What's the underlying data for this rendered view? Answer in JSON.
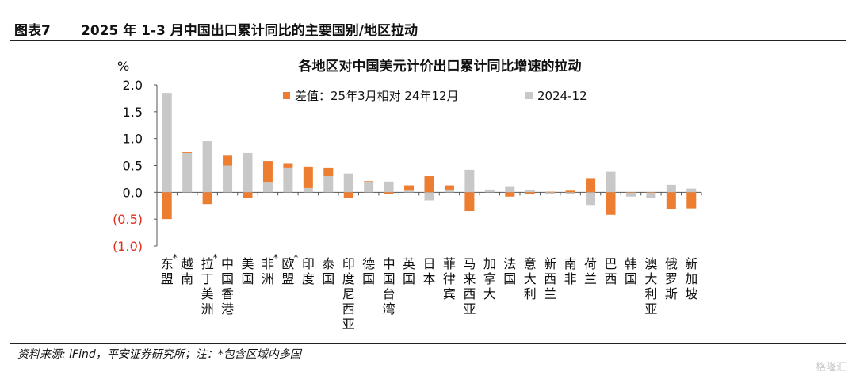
{
  "header": {
    "figure_label": "图表7",
    "title": "2025 年 1-3 月中国出口累计同比的主要国别/地区拉动"
  },
  "footer": {
    "source": "资料来源: iFind，平安证券研究所；注：*包含区域内多国",
    "watermark": "格隆汇"
  },
  "colors": {
    "diff": "#ED7D31",
    "base": "#C8C8C8",
    "negative_tick": "#E03020",
    "axis": "#555555"
  },
  "chart_data": {
    "type": "bar",
    "title": "各地区对中国美元计价出口累计同比增速的拉动",
    "ylabel": "%",
    "ylim": [
      -1.0,
      2.0
    ],
    "yticks": [
      2.0,
      1.5,
      1.0,
      0.5,
      0.0,
      -0.5,
      -1.0
    ],
    "ytick_labels": [
      "2.0",
      "1.5",
      "1.0",
      "0.5",
      "0.0",
      "(0.5)",
      "(1.0)"
    ],
    "legend_position": "top",
    "categories": [
      "*东盟",
      "越南",
      "*拉丁美洲",
      "中国香港",
      "美国",
      "*非洲",
      "*欧盟",
      "印度",
      "泰国",
      "印度尼西亚",
      "德国",
      "中国台湾",
      "英国",
      "日本",
      "菲律宾",
      "马来西亚",
      "加拿大",
      "法国",
      "意大利",
      "新西兰",
      "南非",
      "荷兰",
      "巴西",
      "韩国",
      "澳大利亚",
      "俄罗斯",
      "新加坡"
    ],
    "series": [
      {
        "name": "差值：25年3月相对 24年12月",
        "values": [
          -0.5,
          0.02,
          -0.22,
          0.18,
          -0.1,
          0.4,
          0.08,
          0.4,
          0.15,
          -0.1,
          0.01,
          -0.03,
          0.1,
          0.3,
          0.08,
          -0.35,
          0.01,
          -0.08,
          -0.04,
          0.01,
          0.03,
          0.25,
          -0.42,
          0.0,
          0.0,
          -0.32,
          -0.3
        ]
      },
      {
        "name": "2024-12",
        "values": [
          1.85,
          0.73,
          0.95,
          0.5,
          0.73,
          0.18,
          0.45,
          0.08,
          0.3,
          0.35,
          0.2,
          0.2,
          0.03,
          -0.15,
          0.05,
          0.42,
          0.04,
          0.1,
          0.05,
          -0.03,
          -0.03,
          -0.25,
          0.38,
          -0.08,
          -0.1,
          0.14,
          0.07
        ]
      }
    ]
  }
}
